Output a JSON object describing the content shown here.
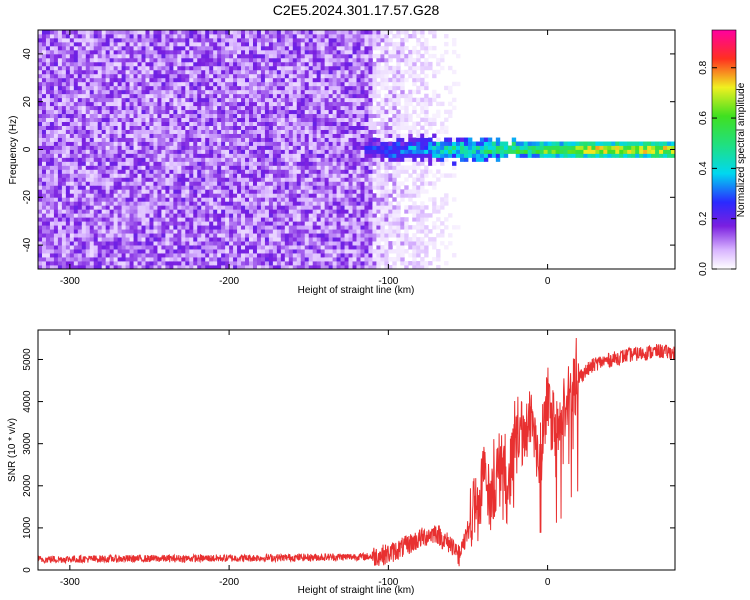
{
  "figure": {
    "title": "C2E5.2024.301.17.57.G28"
  },
  "colors": {
    "snr_line": "#e83030",
    "axis": "#000000",
    "spectrogram_noise": "#7a1fe0",
    "spectrogram_peak": "#ff2020"
  },
  "chart_data": [
    {
      "type": "heatmap",
      "name": "spectrogram",
      "title": "",
      "xlabel": "Height of straight line (km)",
      "ylabel": "Frequency (Hz)",
      "xlim": [
        -320,
        80
      ],
      "ylim": [
        -50,
        50
      ],
      "xticks": [
        -300,
        -200,
        -100,
        0
      ],
      "yticks": [
        -40,
        -20,
        0,
        20,
        40
      ],
      "colorbar": {
        "label": "Normalized spectral amplitude",
        "range": [
          0.0,
          0.95
        ],
        "ticks": [
          "0.0",
          "0.2",
          "0.4",
          "0.6",
          "0.8"
        ],
        "colormap": "rainbow (white-purple-blue-cyan-green-yellow-red-magenta)"
      },
      "features": {
        "noise_region_x": [
          -320,
          -110
        ],
        "noise_amplitude": 0.15,
        "fade_region_x": [
          -110,
          -50
        ],
        "signal_band_x": [
          -115,
          80
        ],
        "signal_center_freq_hz": 0,
        "signal_amplitude_start": 0.3,
        "signal_amplitude_peak": 0.9
      }
    },
    {
      "type": "line",
      "name": "snr",
      "title": "",
      "xlabel": "Height of straight line (km)",
      "ylabel": "SNR (10 * v/v)",
      "xlim": [
        -320,
        80
      ],
      "ylim": [
        0,
        5700
      ],
      "xticks": [
        -300,
        -200,
        -100,
        0
      ],
      "yticks": [
        0,
        1000,
        2000,
        3000,
        4000,
        5000
      ],
      "series": [
        {
          "x": [
            -320,
            -300,
            -250,
            -200,
            -150,
            -110,
            -100,
            -90,
            -80,
            -70,
            -65,
            -60,
            -55,
            -50,
            -45,
            -40,
            -35,
            -30,
            -25,
            -20,
            -15,
            -10,
            -5,
            0,
            5,
            10,
            15,
            20,
            30,
            40,
            50,
            60,
            70,
            80
          ],
          "values": [
            250,
            260,
            270,
            280,
            300,
            320,
            380,
            550,
            750,
            900,
            700,
            600,
            300,
            1000,
            1600,
            2200,
            1700,
            2600,
            1800,
            3500,
            3100,
            3800,
            2600,
            4100,
            2900,
            3800,
            4300,
            4600,
            4900,
            5000,
            5100,
            5150,
            5200,
            5150
          ]
        }
      ]
    }
  ]
}
